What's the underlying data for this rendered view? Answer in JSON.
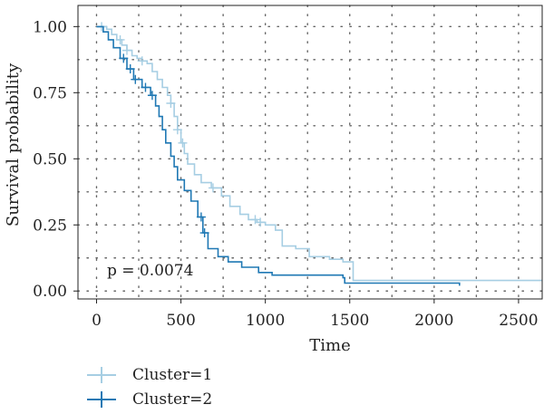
{
  "chart_data": {
    "type": "line",
    "subtype": "kaplan-meier",
    "title": "",
    "xlabel": "Time",
    "ylabel": "Survival probability",
    "xlim": [
      -110,
      2640
    ],
    "ylim": [
      -0.03,
      1.08
    ],
    "x_ticks": [
      0,
      500,
      1000,
      1500,
      2000,
      2500
    ],
    "y_ticks": [
      0.0,
      0.25,
      0.5,
      0.75,
      1.0
    ],
    "x_tick_labels": [
      "0",
      "500",
      "1000",
      "1500",
      "2000",
      "2500"
    ],
    "y_tick_labels": [
      "0.00",
      "0.25",
      "0.50",
      "0.75",
      "1.00"
    ],
    "grid": true,
    "grid_style": "dotted",
    "annotation": "p = 0.0074",
    "legend_position": "bottom-left",
    "series": [
      {
        "name": "Cluster=1",
        "color": "#a6cee3",
        "steps": [
          [
            0,
            1.0
          ],
          [
            60,
            0.99
          ],
          [
            90,
            0.97
          ],
          [
            120,
            0.95
          ],
          [
            150,
            0.93
          ],
          [
            180,
            0.91
          ],
          [
            210,
            0.89
          ],
          [
            240,
            0.88
          ],
          [
            270,
            0.87
          ],
          [
            300,
            0.86
          ],
          [
            330,
            0.83
          ],
          [
            360,
            0.8
          ],
          [
            390,
            0.77
          ],
          [
            420,
            0.74
          ],
          [
            440,
            0.71
          ],
          [
            460,
            0.66
          ],
          [
            480,
            0.61
          ],
          [
            500,
            0.56
          ],
          [
            520,
            0.52
          ],
          [
            540,
            0.48
          ],
          [
            580,
            0.44
          ],
          [
            620,
            0.41
          ],
          [
            680,
            0.39
          ],
          [
            740,
            0.36
          ],
          [
            790,
            0.32
          ],
          [
            850,
            0.29
          ],
          [
            900,
            0.27
          ],
          [
            950,
            0.26
          ],
          [
            1000,
            0.25
          ],
          [
            1060,
            0.23
          ],
          [
            1100,
            0.17
          ],
          [
            1180,
            0.16
          ],
          [
            1260,
            0.13
          ],
          [
            1380,
            0.12
          ],
          [
            1460,
            0.11
          ],
          [
            1520,
            0.04
          ],
          [
            2640,
            0.04
          ]
        ],
        "censor_x": [
          30,
          140,
          180,
          270,
          440,
          480,
          510,
          690,
          940,
          970
        ]
      },
      {
        "name": "Cluster=2",
        "color": "#1f78b4",
        "steps": [
          [
            0,
            1.0
          ],
          [
            40,
            0.98
          ],
          [
            70,
            0.95
          ],
          [
            100,
            0.92
          ],
          [
            140,
            0.88
          ],
          [
            180,
            0.84
          ],
          [
            220,
            0.8
          ],
          [
            270,
            0.77
          ],
          [
            320,
            0.74
          ],
          [
            350,
            0.7
          ],
          [
            370,
            0.66
          ],
          [
            390,
            0.61
          ],
          [
            410,
            0.56
          ],
          [
            440,
            0.51
          ],
          [
            460,
            0.47
          ],
          [
            480,
            0.42
          ],
          [
            520,
            0.38
          ],
          [
            560,
            0.34
          ],
          [
            600,
            0.28
          ],
          [
            630,
            0.22
          ],
          [
            660,
            0.16
          ],
          [
            720,
            0.13
          ],
          [
            780,
            0.11
          ],
          [
            860,
            0.09
          ],
          [
            960,
            0.07
          ],
          [
            1040,
            0.06
          ],
          [
            1460,
            0.05
          ],
          [
            1470,
            0.03
          ],
          [
            2150,
            0.02
          ]
        ],
        "censor_x": [
          160,
          200,
          230,
          290,
          330,
          620,
          640
        ]
      }
    ]
  }
}
